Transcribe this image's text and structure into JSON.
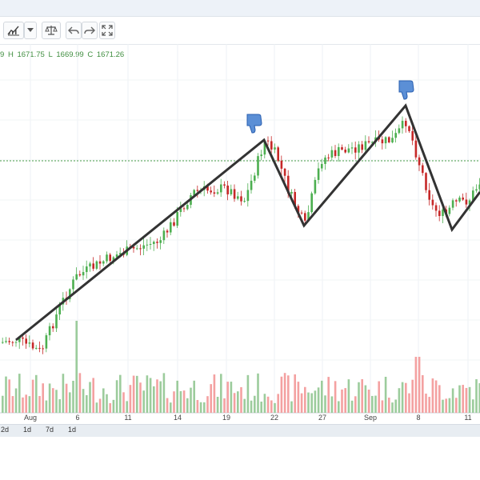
{
  "toolbar": {
    "buttons": [
      {
        "icon": "chart-type-icon"
      },
      {
        "icon": "chevron-down-icon"
      },
      {
        "icon": "compare-scale-icon"
      },
      {
        "icon": "undo-icon"
      },
      {
        "icon": "redo-icon"
      },
      {
        "icon": "fullscreen-icon"
      }
    ]
  },
  "ohlc": {
    "open_partial": "9",
    "h_label": "H",
    "h_value": "1671.75",
    "l_label": "L",
    "l_value": "1669.99",
    "c_label": "C",
    "c_value": "1671.26"
  },
  "timeframes": [
    "2d",
    "1d",
    "7d",
    "1d"
  ],
  "chart_data": {
    "type": "candlestick",
    "x_tick_labels": [
      "Aug",
      "6",
      "11",
      "14",
      "19",
      "22",
      "27",
      "Sep",
      "8",
      "11"
    ],
    "price_line_color": "#4a9e4a",
    "up_color": "#4caf50",
    "down_color": "#c62828",
    "volume_up_color": "#9ccc9c",
    "volume_down_color": "#f4a1a1",
    "zigzag_pattern": [
      "low",
      "high",
      "low",
      "high",
      "low"
    ],
    "dislike_markers": 2
  }
}
